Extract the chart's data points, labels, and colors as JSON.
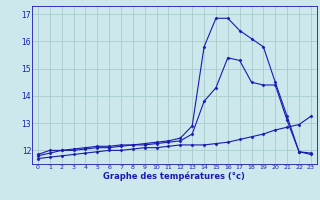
{
  "xlabel": "Graphe des températures (°c)",
  "bg_color": "#cce8ed",
  "grid_color": "#aacccc",
  "line_color": "#1a1ab0",
  "xlim": [
    -0.5,
    23.5
  ],
  "ylim": [
    11.5,
    17.3
  ],
  "yticks": [
    12,
    13,
    14,
    15,
    16,
    17
  ],
  "xticks": [
    0,
    1,
    2,
    3,
    4,
    5,
    6,
    7,
    8,
    9,
    10,
    11,
    12,
    13,
    14,
    15,
    16,
    17,
    18,
    19,
    20,
    21,
    22,
    23
  ],
  "line1_x": [
    0,
    1,
    2,
    3,
    4,
    5,
    6,
    7,
    8,
    9,
    10,
    11,
    12,
    13,
    14,
    15,
    16,
    17,
    18,
    19,
    20,
    21,
    22,
    23
  ],
  "line1_y": [
    11.7,
    11.75,
    11.8,
    11.85,
    11.9,
    11.95,
    12.0,
    12.0,
    12.05,
    12.1,
    12.1,
    12.15,
    12.2,
    12.2,
    12.2,
    12.25,
    12.3,
    12.4,
    12.5,
    12.6,
    12.75,
    12.85,
    12.95,
    13.25
  ],
  "line2_x": [
    0,
    1,
    2,
    3,
    4,
    5,
    6,
    7,
    8,
    9,
    10,
    11,
    12,
    13,
    14,
    15,
    16,
    17,
    18,
    19,
    20,
    21,
    22,
    23
  ],
  "line2_y": [
    11.8,
    11.9,
    12.0,
    12.0,
    12.05,
    12.1,
    12.1,
    12.15,
    12.2,
    12.2,
    12.25,
    12.3,
    12.35,
    12.6,
    13.8,
    14.3,
    15.4,
    15.3,
    14.5,
    14.4,
    14.4,
    13.1,
    11.95,
    11.85
  ],
  "line3_x": [
    0,
    1,
    2,
    3,
    4,
    5,
    6,
    7,
    8,
    9,
    10,
    11,
    12,
    13,
    14,
    15,
    16,
    17,
    18,
    19,
    20,
    21,
    22,
    23
  ],
  "line3_y": [
    11.85,
    12.0,
    12.0,
    12.05,
    12.1,
    12.15,
    12.15,
    12.2,
    12.2,
    12.25,
    12.3,
    12.35,
    12.45,
    12.9,
    15.8,
    16.85,
    16.85,
    16.4,
    16.1,
    15.8,
    14.5,
    13.25,
    11.95,
    11.9
  ]
}
